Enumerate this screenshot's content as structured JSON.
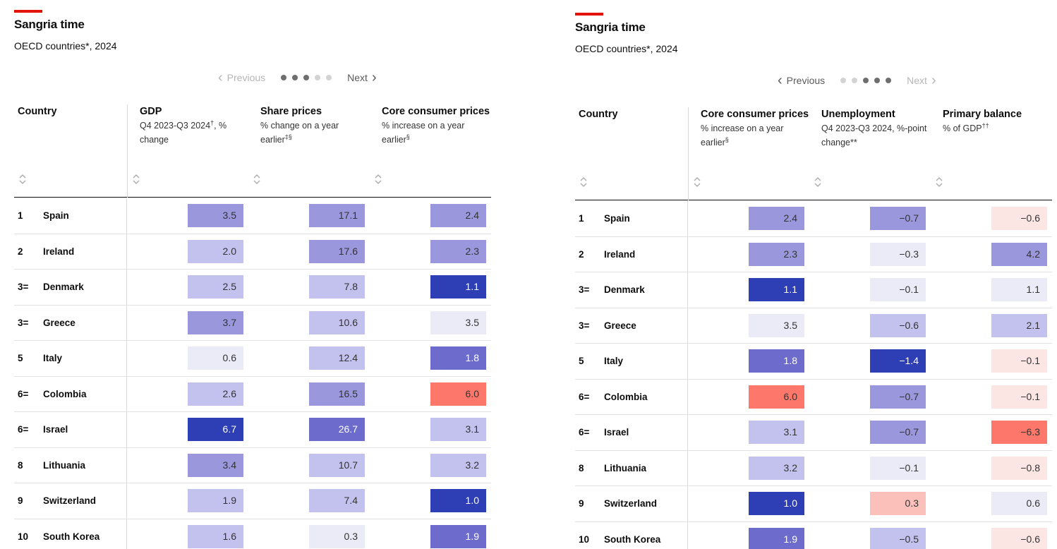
{
  "panels": [
    {
      "title": "Sangria time",
      "subtitle": "OECD countries*, 2024",
      "pager": {
        "previous": "Previous",
        "next": "Next",
        "dots": 5,
        "active_dots": [
          0,
          1,
          2
        ],
        "previous_enabled": false,
        "next_enabled": true
      },
      "columns": [
        {
          "label": "Country",
          "sub": ""
        },
        {
          "label": "GDP",
          "sub": "Q4 2023-Q3 2024",
          "sup": "†",
          "sub2": ", % change"
        },
        {
          "label": "Share prices",
          "sub": "% change on a year earlier",
          "sup": "‡§",
          "sub2": ""
        },
        {
          "label": "Core consumer prices",
          "sub": "% increase on a year earlier",
          "sup": "§",
          "sub2": ""
        }
      ],
      "value_keys": [
        "gdp",
        "share_prices",
        "core_cpi"
      ]
    },
    {
      "title": "Sangria time",
      "subtitle": "OECD countries*, 2024",
      "pager": {
        "previous": "Previous",
        "next": "Next",
        "dots": 5,
        "active_dots": [
          2,
          3,
          4
        ],
        "previous_enabled": true,
        "next_enabled": false
      },
      "columns": [
        {
          "label": "Country",
          "sub": ""
        },
        {
          "label": "Core consumer prices",
          "sub": "% increase on a year earlier",
          "sup": "§",
          "sub2": ""
        },
        {
          "label": "Unemployment",
          "sub": "Q4 2023-Q3 2024, %-point change**",
          "sup": "",
          "sub2": ""
        },
        {
          "label": "Primary balance",
          "sub": "% of GDP",
          "sup": "††",
          "sub2": ""
        }
      ],
      "value_keys": [
        "core_cpi",
        "unemployment",
        "primary_balance"
      ]
    }
  ],
  "chart_data": {
    "type": "table",
    "title": "Sangria time",
    "subtitle": "OECD countries*, 2024",
    "rows": [
      {
        "rank": "1",
        "country": "Spain",
        "gdp": "3.5",
        "share_prices": "17.1",
        "core_cpi": "2.4",
        "unemployment": "−0.7",
        "primary_balance": "−0.6"
      },
      {
        "rank": "2",
        "country": "Ireland",
        "gdp": "2.0",
        "share_prices": "17.6",
        "core_cpi": "2.3",
        "unemployment": "−0.3",
        "primary_balance": "4.2"
      },
      {
        "rank": "3=",
        "country": "Denmark",
        "gdp": "2.5",
        "share_prices": "7.8",
        "core_cpi": "1.1",
        "unemployment": "−0.1",
        "primary_balance": "1.1"
      },
      {
        "rank": "3=",
        "country": "Greece",
        "gdp": "3.7",
        "share_prices": "10.6",
        "core_cpi": "3.5",
        "unemployment": "−0.6",
        "primary_balance": "2.1"
      },
      {
        "rank": "5",
        "country": "Italy",
        "gdp": "0.6",
        "share_prices": "12.4",
        "core_cpi": "1.8",
        "unemployment": "−1.4",
        "primary_balance": "−0.1"
      },
      {
        "rank": "6=",
        "country": "Colombia",
        "gdp": "2.6",
        "share_prices": "16.5",
        "core_cpi": "6.0",
        "unemployment": "−0.7",
        "primary_balance": "−0.1"
      },
      {
        "rank": "6=",
        "country": "Israel",
        "gdp": "6.7",
        "share_prices": "26.7",
        "core_cpi": "3.1",
        "unemployment": "−0.7",
        "primary_balance": "−6.3"
      },
      {
        "rank": "8",
        "country": "Lithuania",
        "gdp": "3.4",
        "share_prices": "10.7",
        "core_cpi": "3.2",
        "unemployment": "−0.1",
        "primary_balance": "−0.8"
      },
      {
        "rank": "9",
        "country": "Switzerland",
        "gdp": "1.9",
        "share_prices": "7.4",
        "core_cpi": "1.0",
        "unemployment": "0.3",
        "primary_balance": "0.6"
      },
      {
        "rank": "10",
        "country": "South Korea",
        "gdp": "1.6",
        "share_prices": "0.3",
        "core_cpi": "1.9",
        "unemployment": "−0.5",
        "primary_balance": "−0.6"
      }
    ],
    "cell_colors": {
      "gdp": [
        "#9a97dc",
        "#c3c1ed",
        "#c3c1ed",
        "#9a97dc",
        "#ebebf8",
        "#c3c1ed",
        "#2e3eb4",
        "#9a97dc",
        "#c3c1ed",
        "#c3c1ed"
      ],
      "share_prices": [
        "#9a97dc",
        "#9a97dc",
        "#c3c1ed",
        "#c3c1ed",
        "#c3c1ed",
        "#9a97dc",
        "#6d6ccc",
        "#c3c1ed",
        "#c3c1ed",
        "#ebebf8"
      ],
      "core_cpi": [
        "#9a97dc",
        "#9a97dc",
        "#2e3eb4",
        "#ebebf8",
        "#6d6ccc",
        "#fd786b",
        "#c3c1ed",
        "#c3c1ed",
        "#2e3eb4",
        "#6d6ccc"
      ],
      "unemployment": [
        "#9a97dc",
        "#ebebf8",
        "#ebebf8",
        "#c3c1ed",
        "#2e3eb4",
        "#9a97dc",
        "#9a97dc",
        "#ebebf8",
        "#fcc0bb",
        "#c3c1ed"
      ],
      "primary_balance": [
        "#fce6e4",
        "#9a97dc",
        "#ebebf8",
        "#c3c1ed",
        "#fce6e4",
        "#fce6e4",
        "#fd786b",
        "#fce6e4",
        "#ebebf8",
        "#fce6e4"
      ]
    },
    "dark_text_colors": [
      "#2e3eb4",
      "#6d6ccc"
    ]
  }
}
